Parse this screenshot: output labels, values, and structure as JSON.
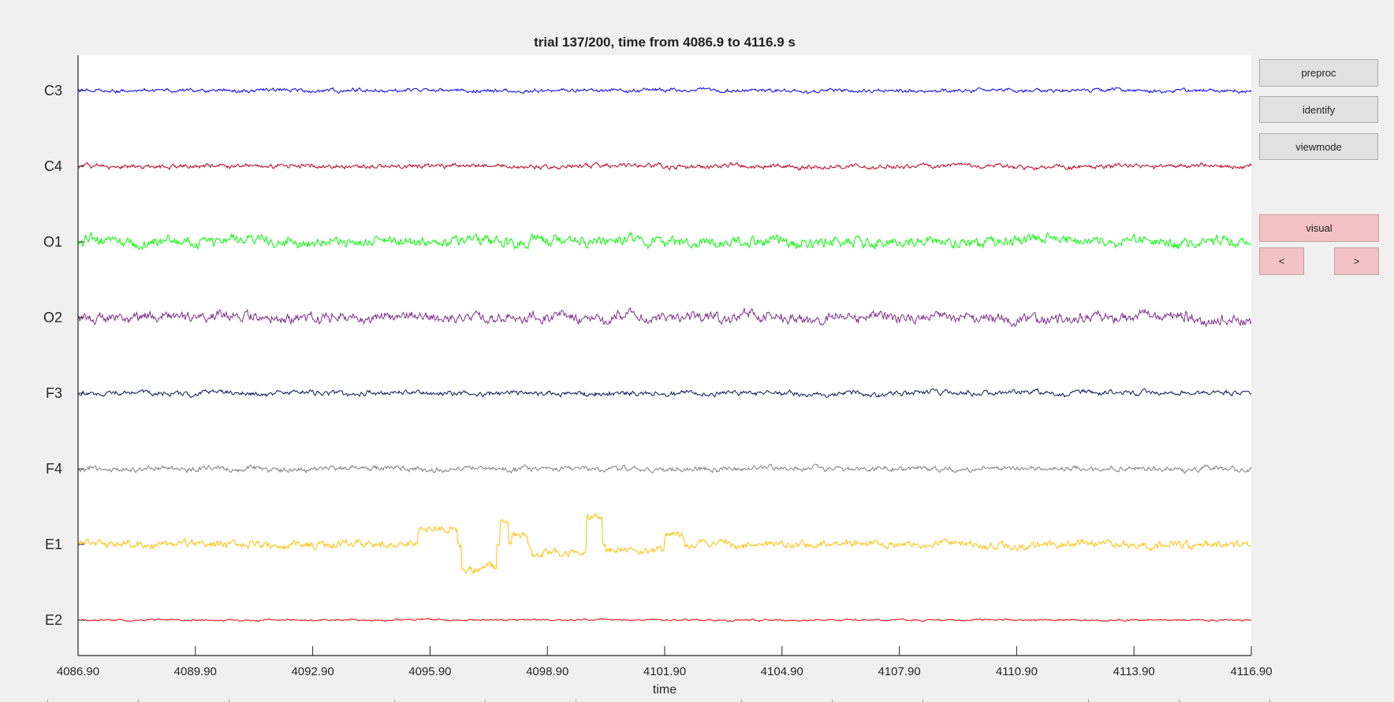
{
  "title": "trial 137/200, time from 4086.9 to 4116.9 s",
  "xlabel": "time",
  "buttons": {
    "preproc": "preproc",
    "identify": "identify",
    "viewmode": "viewmode",
    "visual": "visual",
    "prev": "<",
    "next": ">"
  },
  "colors": {
    "background": "#f0f0f0",
    "axes_bg": "#ffffff",
    "visual_button": "#f4c2c4"
  },
  "chart_data": {
    "type": "line",
    "title": "trial 137/200, time from 4086.9 to 4116.9 s",
    "xlabel": "time",
    "ylabel": "",
    "xlim": [
      4086.9,
      4116.9
    ],
    "xticks": [
      "4086.90",
      "4089.90",
      "4092.90",
      "4095.90",
      "4098.90",
      "4101.90",
      "4104.90",
      "4107.90",
      "4110.90",
      "4113.90",
      "4116.90"
    ],
    "grid": false,
    "series": [
      {
        "name": "C3",
        "color": "#0000ff",
        "amplitude": 2.5
      },
      {
        "name": "C4",
        "color": "#c0001a",
        "amplitude": 3
      },
      {
        "name": "O1",
        "color": "#00ff00",
        "amplitude": 7
      },
      {
        "name": "O2",
        "color": "#7e2f8e",
        "amplitude": 7
      },
      {
        "name": "F3",
        "color": "#0a1a5a",
        "amplitude": 3.5
      },
      {
        "name": "F4",
        "color": "#808080",
        "amplitude": 3.5
      },
      {
        "name": "E1",
        "color": "#ffc000",
        "amplitude": 5,
        "baseline_shifts": [
          {
            "from": 4095.6,
            "to": 4096.6,
            "offset": 18
          },
          {
            "from": 4096.7,
            "to": 4097.6,
            "offset": -30
          },
          {
            "from": 4097.7,
            "to": 4097.9,
            "offset": 28
          },
          {
            "from": 4098.0,
            "to": 4098.4,
            "offset": 12
          },
          {
            "from": 4098.5,
            "to": 4099.9,
            "offset": -12
          },
          {
            "from": 4099.9,
            "to": 4100.3,
            "offset": 35
          },
          {
            "from": 4100.4,
            "to": 4101.9,
            "offset": -8
          },
          {
            "from": 4101.9,
            "to": 4102.4,
            "offset": 14
          }
        ]
      },
      {
        "name": "E2",
        "color": "#ff0000",
        "amplitude": 1.2
      }
    ]
  }
}
